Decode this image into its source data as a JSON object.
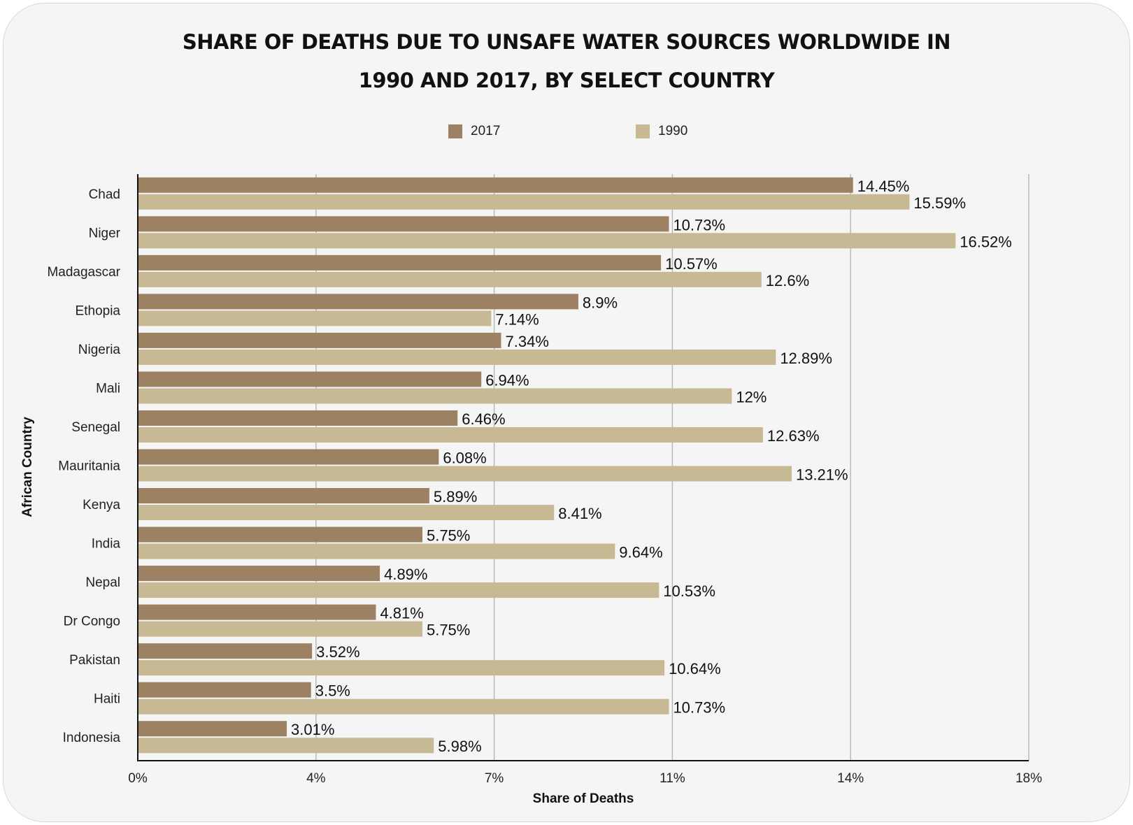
{
  "chart_data": {
    "type": "bar",
    "orientation": "horizontal",
    "title_lines": [
      "SHARE OF DEATHS DUE TO UNSAFE WATER SOURCES WORLDWIDE IN",
      "1990 AND 2017, BY SELECT COUNTRY"
    ],
    "xlabel": "Share of Deaths",
    "ylabel": "African Country",
    "x_ticks": [
      "0%",
      "4%",
      "7%",
      "11%",
      "14%",
      "18%"
    ],
    "xlim": [
      0,
      18
    ],
    "grid": true,
    "legend_position": "top",
    "categories": [
      "Chad",
      "Niger",
      "Madagascar",
      "Ethopia",
      "Nigeria",
      "Mali",
      "Senegal",
      "Mauritania",
      "Kenya",
      "India",
      "Nepal",
      "Dr Congo",
      "Pakistan",
      "Haiti",
      "Indonesia"
    ],
    "series": [
      {
        "name": "2017",
        "color": "#9c8163",
        "values": [
          14.45,
          10.73,
          10.57,
          8.9,
          7.34,
          6.94,
          6.46,
          6.08,
          5.89,
          5.75,
          4.89,
          4.81,
          3.52,
          3.5,
          3.01
        ],
        "labels": [
          "14.45%",
          "10.73%",
          "10.57%",
          "8.9%",
          "7.34%",
          "6.94%",
          "6.46%",
          "6.08%",
          "5.89%",
          "5.75%",
          "4.89%",
          "4.81%",
          "3.52%",
          "3.5%",
          "3.01%"
        ]
      },
      {
        "name": "1990",
        "color": "#c7b993",
        "values": [
          15.59,
          16.52,
          12.6,
          7.14,
          12.89,
          12,
          12.63,
          13.21,
          8.41,
          9.64,
          10.53,
          5.75,
          10.64,
          10.73,
          5.98
        ],
        "labels": [
          "15.59%",
          "16.52%",
          "12.6%",
          "7.14%",
          "12.89%",
          "12%",
          "12.63%",
          "13.21%",
          "8.41%",
          "9.64%",
          "10.53%",
          "5.75%",
          "10.64%",
          "10.73%",
          "5.98%"
        ]
      }
    ]
  }
}
